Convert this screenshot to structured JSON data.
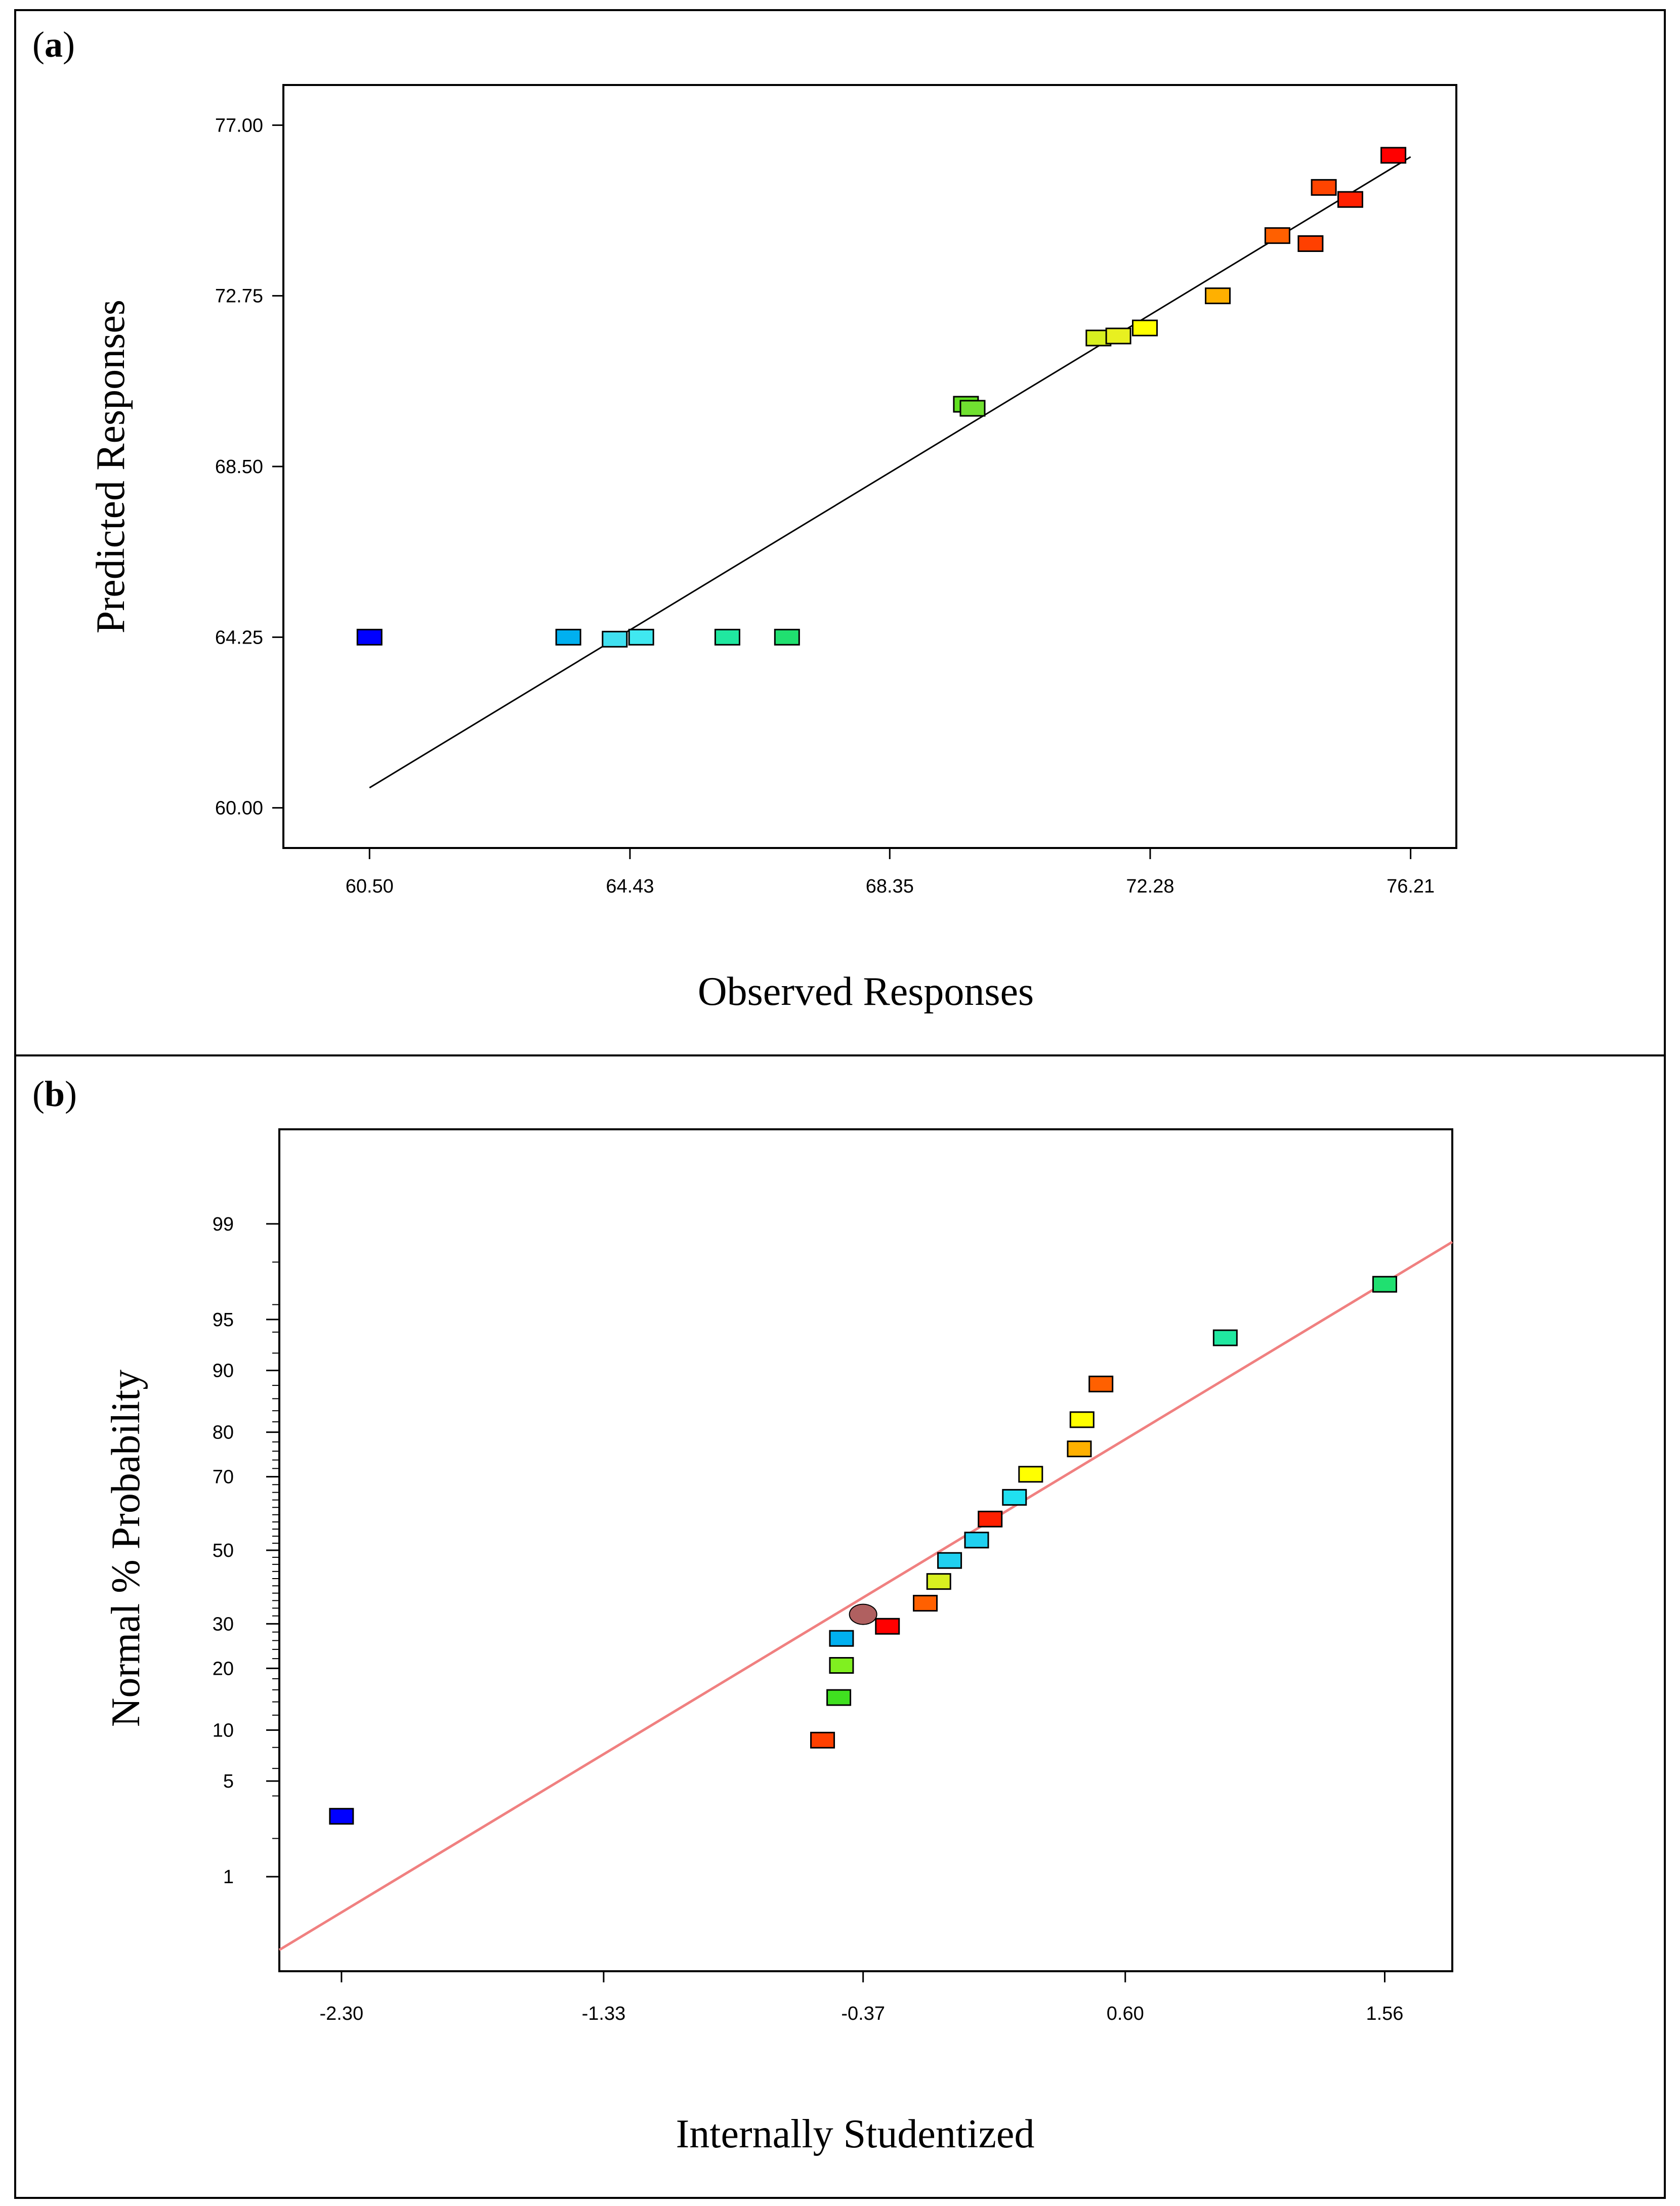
{
  "chart_data": [
    {
      "type": "scatter",
      "panel_label": "a",
      "xlabel": "Observed Responses",
      "ylabel": "Predicted Responses",
      "xlim": [
        59.2,
        76.9
      ],
      "ylim": [
        59.0,
        78.0
      ],
      "x_ticks": [
        60.5,
        64.43,
        68.35,
        72.28,
        76.21
      ],
      "x_tick_labels": [
        "60.50",
        "64.43",
        "68.35",
        "72.28",
        "76.21"
      ],
      "y_ticks": [
        60.0,
        64.25,
        68.5,
        72.75,
        77.0
      ],
      "y_tick_labels": [
        "60.00",
        "64.25",
        "68.50",
        "72.75",
        "77.00"
      ],
      "line": {
        "x": [
          60.5,
          76.21
        ],
        "y": [
          60.5,
          76.21
        ],
        "color": "#000000"
      },
      "points": [
        {
          "x": 60.5,
          "y": 64.25,
          "color": "#0000ff"
        },
        {
          "x": 63.5,
          "y": 64.25,
          "color": "#00b0f0"
        },
        {
          "x": 64.2,
          "y": 64.2,
          "color": "#40e0f0"
        },
        {
          "x": 64.6,
          "y": 64.25,
          "color": "#40e8f0"
        },
        {
          "x": 65.9,
          "y": 64.25,
          "color": "#20e8a0"
        },
        {
          "x": 66.8,
          "y": 64.25,
          "color": "#20e070"
        },
        {
          "x": 69.5,
          "y": 70.05,
          "color": "#60e020"
        },
        {
          "x": 69.6,
          "y": 69.95,
          "color": "#70e030"
        },
        {
          "x": 71.5,
          "y": 71.7,
          "color": "#d8f020"
        },
        {
          "x": 71.8,
          "y": 71.75,
          "color": "#e8f020"
        },
        {
          "x": 72.2,
          "y": 71.95,
          "color": "#ffff00"
        },
        {
          "x": 73.3,
          "y": 72.75,
          "color": "#ffb000"
        },
        {
          "x": 74.2,
          "y": 74.25,
          "color": "#ff6000"
        },
        {
          "x": 74.7,
          "y": 74.05,
          "color": "#ff4000"
        },
        {
          "x": 74.9,
          "y": 75.45,
          "color": "#ff4400"
        },
        {
          "x": 75.3,
          "y": 75.15,
          "color": "#ff2000"
        },
        {
          "x": 75.95,
          "y": 76.25,
          "color": "#ff0000"
        }
      ]
    },
    {
      "type": "scatter",
      "panel_label": "b",
      "xlabel": "Internally Studentized",
      "ylabel": "Normal % Probability",
      "xlim": [
        -2.53,
        1.81
      ],
      "y_scale": "normal probability",
      "x_ticks": [
        -2.3,
        -1.33,
        -0.37,
        0.6,
        1.56
      ],
      "x_tick_labels": [
        "-2.30",
        "-1.33",
        "-0.37",
        "0.60",
        "1.56"
      ],
      "y_ticks": [
        1,
        5,
        10,
        20,
        30,
        50,
        70,
        80,
        90,
        95,
        99
      ],
      "y_tick_labels": [
        "1",
        "5",
        "10",
        "20",
        "30",
        "50",
        "70",
        "80",
        "90",
        "95",
        "99"
      ],
      "line": {
        "x": [
          -2.53,
          1.81
        ],
        "y": [
          0.22,
          98.6
        ],
        "color": "#f08080"
      },
      "points": [
        {
          "x": -2.3,
          "y": 2.9,
          "color": "#0000ff",
          "shape": "square"
        },
        {
          "x": -0.52,
          "y": 8.8,
          "color": "#ff4000",
          "shape": "square"
        },
        {
          "x": -0.46,
          "y": 14.7,
          "color": "#40e020",
          "shape": "square"
        },
        {
          "x": -0.45,
          "y": 20.6,
          "color": "#80f020",
          "shape": "square"
        },
        {
          "x": -0.45,
          "y": 26.5,
          "color": "#00b0f0",
          "shape": "square"
        },
        {
          "x": -0.37,
          "y": 32.4,
          "color": "#b06060",
          "shape": "circle"
        },
        {
          "x": -0.28,
          "y": 29.4,
          "color": "#ff0000",
          "shape": "square"
        },
        {
          "x": -0.14,
          "y": 35.3,
          "color": "#ff6000",
          "shape": "square"
        },
        {
          "x": -0.09,
          "y": 41.2,
          "color": "#d8f020",
          "shape": "square"
        },
        {
          "x": -0.05,
          "y": 47.1,
          "color": "#20d0f0",
          "shape": "square"
        },
        {
          "x": 0.05,
          "y": 52.9,
          "color": "#20d0f0",
          "shape": "square"
        },
        {
          "x": 0.1,
          "y": 58.8,
          "color": "#ff2000",
          "shape": "square"
        },
        {
          "x": 0.19,
          "y": 64.7,
          "color": "#20e0f0",
          "shape": "square"
        },
        {
          "x": 0.25,
          "y": 70.6,
          "color": "#ffff00",
          "shape": "square"
        },
        {
          "x": 0.43,
          "y": 76.5,
          "color": "#ffb000",
          "shape": "square"
        },
        {
          "x": 0.44,
          "y": 82.4,
          "color": "#ffff00",
          "shape": "square"
        },
        {
          "x": 0.51,
          "y": 88.2,
          "color": "#ff6000",
          "shape": "square"
        },
        {
          "x": 0.97,
          "y": 93.5,
          "color": "#20e8a0",
          "shape": "square"
        },
        {
          "x": 1.56,
          "y": 97.1,
          "color": "#20e070",
          "shape": "square"
        }
      ]
    }
  ]
}
